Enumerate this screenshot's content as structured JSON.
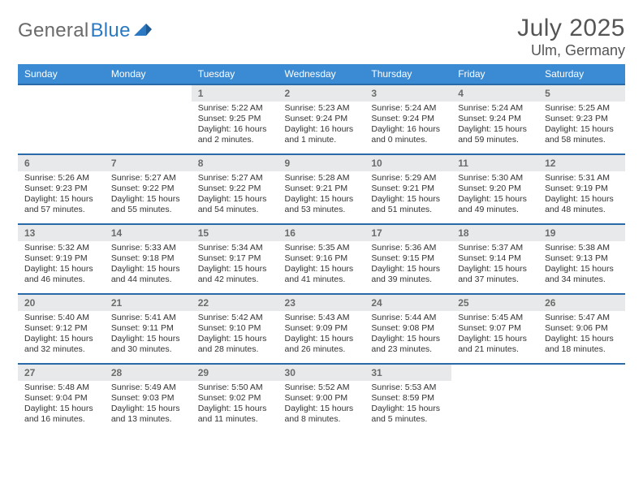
{
  "brand": {
    "text_gray": "General",
    "text_blue": "Blue"
  },
  "header": {
    "month": "July 2025",
    "location": "Ulm, Germany"
  },
  "style": {
    "header_bg": "#3b8bd4",
    "header_text": "#ffffff",
    "row_border": "#2b6aa8",
    "daynum_bg": "#e7e9ea",
    "daynum_text": "#6b6b6b",
    "body_text": "#333333",
    "title_text": "#555555",
    "logo_gray": "#6a6a6a",
    "logo_blue": "#2b79c2",
    "font_day": 12,
    "font_info": 10.5,
    "font_title": 30,
    "font_location": 18
  },
  "weekdays": [
    "Sunday",
    "Monday",
    "Tuesday",
    "Wednesday",
    "Thursday",
    "Friday",
    "Saturday"
  ],
  "weeks": [
    [
      null,
      null,
      {
        "n": "1",
        "sr": "5:22 AM",
        "ss": "9:25 PM",
        "dl": "16 hours and 2 minutes."
      },
      {
        "n": "2",
        "sr": "5:23 AM",
        "ss": "9:24 PM",
        "dl": "16 hours and 1 minute."
      },
      {
        "n": "3",
        "sr": "5:24 AM",
        "ss": "9:24 PM",
        "dl": "16 hours and 0 minutes."
      },
      {
        "n": "4",
        "sr": "5:24 AM",
        "ss": "9:24 PM",
        "dl": "15 hours and 59 minutes."
      },
      {
        "n": "5",
        "sr": "5:25 AM",
        "ss": "9:23 PM",
        "dl": "15 hours and 58 minutes."
      }
    ],
    [
      {
        "n": "6",
        "sr": "5:26 AM",
        "ss": "9:23 PM",
        "dl": "15 hours and 57 minutes."
      },
      {
        "n": "7",
        "sr": "5:27 AM",
        "ss": "9:22 PM",
        "dl": "15 hours and 55 minutes."
      },
      {
        "n": "8",
        "sr": "5:27 AM",
        "ss": "9:22 PM",
        "dl": "15 hours and 54 minutes."
      },
      {
        "n": "9",
        "sr": "5:28 AM",
        "ss": "9:21 PM",
        "dl": "15 hours and 53 minutes."
      },
      {
        "n": "10",
        "sr": "5:29 AM",
        "ss": "9:21 PM",
        "dl": "15 hours and 51 minutes."
      },
      {
        "n": "11",
        "sr": "5:30 AM",
        "ss": "9:20 PM",
        "dl": "15 hours and 49 minutes."
      },
      {
        "n": "12",
        "sr": "5:31 AM",
        "ss": "9:19 PM",
        "dl": "15 hours and 48 minutes."
      }
    ],
    [
      {
        "n": "13",
        "sr": "5:32 AM",
        "ss": "9:19 PM",
        "dl": "15 hours and 46 minutes."
      },
      {
        "n": "14",
        "sr": "5:33 AM",
        "ss": "9:18 PM",
        "dl": "15 hours and 44 minutes."
      },
      {
        "n": "15",
        "sr": "5:34 AM",
        "ss": "9:17 PM",
        "dl": "15 hours and 42 minutes."
      },
      {
        "n": "16",
        "sr": "5:35 AM",
        "ss": "9:16 PM",
        "dl": "15 hours and 41 minutes."
      },
      {
        "n": "17",
        "sr": "5:36 AM",
        "ss": "9:15 PM",
        "dl": "15 hours and 39 minutes."
      },
      {
        "n": "18",
        "sr": "5:37 AM",
        "ss": "9:14 PM",
        "dl": "15 hours and 37 minutes."
      },
      {
        "n": "19",
        "sr": "5:38 AM",
        "ss": "9:13 PM",
        "dl": "15 hours and 34 minutes."
      }
    ],
    [
      {
        "n": "20",
        "sr": "5:40 AM",
        "ss": "9:12 PM",
        "dl": "15 hours and 32 minutes."
      },
      {
        "n": "21",
        "sr": "5:41 AM",
        "ss": "9:11 PM",
        "dl": "15 hours and 30 minutes."
      },
      {
        "n": "22",
        "sr": "5:42 AM",
        "ss": "9:10 PM",
        "dl": "15 hours and 28 minutes."
      },
      {
        "n": "23",
        "sr": "5:43 AM",
        "ss": "9:09 PM",
        "dl": "15 hours and 26 minutes."
      },
      {
        "n": "24",
        "sr": "5:44 AM",
        "ss": "9:08 PM",
        "dl": "15 hours and 23 minutes."
      },
      {
        "n": "25",
        "sr": "5:45 AM",
        "ss": "9:07 PM",
        "dl": "15 hours and 21 minutes."
      },
      {
        "n": "26",
        "sr": "5:47 AM",
        "ss": "9:06 PM",
        "dl": "15 hours and 18 minutes."
      }
    ],
    [
      {
        "n": "27",
        "sr": "5:48 AM",
        "ss": "9:04 PM",
        "dl": "15 hours and 16 minutes."
      },
      {
        "n": "28",
        "sr": "5:49 AM",
        "ss": "9:03 PM",
        "dl": "15 hours and 13 minutes."
      },
      {
        "n": "29",
        "sr": "5:50 AM",
        "ss": "9:02 PM",
        "dl": "15 hours and 11 minutes."
      },
      {
        "n": "30",
        "sr": "5:52 AM",
        "ss": "9:00 PM",
        "dl": "15 hours and 8 minutes."
      },
      {
        "n": "31",
        "sr": "5:53 AM",
        "ss": "8:59 PM",
        "dl": "15 hours and 5 minutes."
      },
      null,
      null
    ]
  ],
  "labels": {
    "sunrise": "Sunrise:",
    "sunset": "Sunset:",
    "daylight": "Daylight:"
  }
}
